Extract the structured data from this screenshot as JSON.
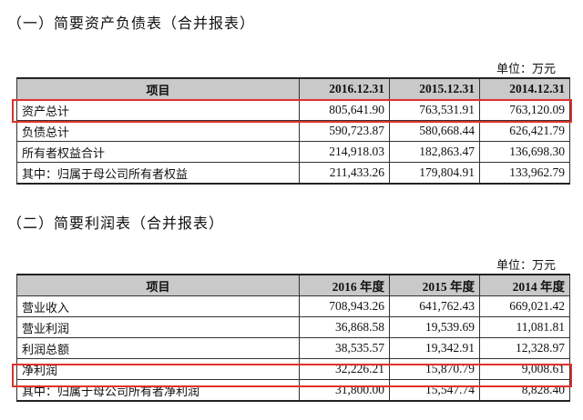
{
  "balance_sheet": {
    "title": "（一）简要资产负债表（合并报表）",
    "unit": "单位：万元",
    "headers": [
      "项目",
      "2016.12.31",
      "2015.12.31",
      "2014.12.31"
    ],
    "rows": [
      [
        "资产总计",
        "805,641.90",
        "763,531.91",
        "763,120.09"
      ],
      [
        "负债总计",
        "590,723.87",
        "580,668.44",
        "626,421.79"
      ],
      [
        "所有者权益合计",
        "214,918.03",
        "182,863.47",
        "136,698.30"
      ],
      [
        "其中：归属于母公司所有者权益",
        "211,433.26",
        "179,804.91",
        "133,962.79"
      ]
    ],
    "highlighted_row": "资产总计"
  },
  "income_statement": {
    "title": "（二）简要利润表（合并报表）",
    "unit": "单位：万元",
    "headers": [
      "项目",
      "2016 年度",
      "2015 年度",
      "2014 年度"
    ],
    "rows": [
      [
        "营业收入",
        "708,943.26",
        "641,762.43",
        "669,021.42"
      ],
      [
        "营业利润",
        "36,868.58",
        "19,539.69",
        "11,081.81"
      ],
      [
        "利润总额",
        "38,535.57",
        "19,342.91",
        "12,328.97"
      ],
      [
        "净利润",
        "32,226.21",
        "15,870.79",
        "9,008.61"
      ],
      [
        "其中：归属于母公司所有者净利润",
        "31,800.00",
        "15,547.74",
        "8,828.40"
      ]
    ],
    "highlighted_row": "净利润"
  },
  "colors": {
    "header_bg": "#c9c9c9",
    "highlight_border": "#e0312d"
  }
}
